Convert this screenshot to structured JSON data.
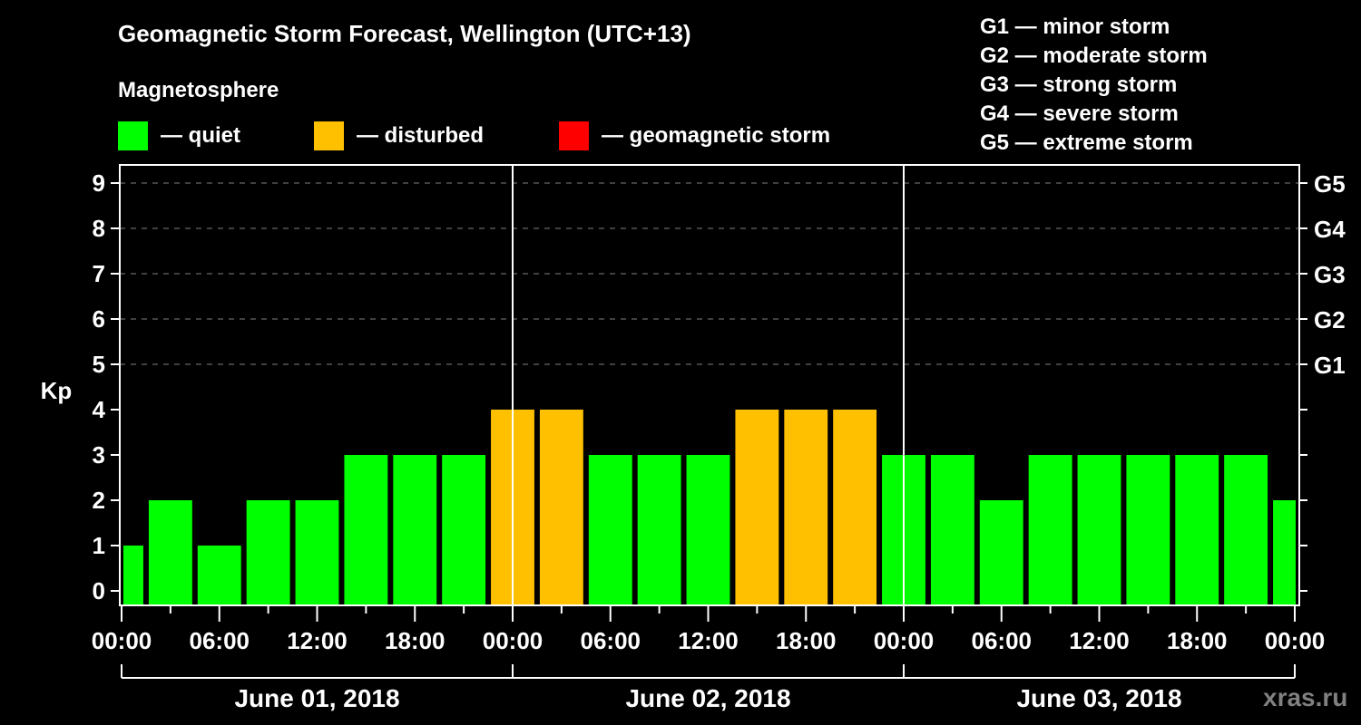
{
  "header": {
    "title": "Geomagnetic Storm Forecast, Wellington (UTC+13)",
    "subtitle": "Magnetosphere"
  },
  "legend": [
    {
      "label": "— quiet",
      "color": "#00ff00"
    },
    {
      "label": "— disturbed",
      "color": "#ffc000"
    },
    {
      "label": "— geomagnetic storm",
      "color": "#ff0000"
    }
  ],
  "storm_scale": [
    "G1 — minor storm",
    "G2 — moderate storm",
    "G3 — strong storm",
    "G4 — severe storm",
    "G5 — extreme storm"
  ],
  "watermark": "xras.ru",
  "chart_data": {
    "type": "bar",
    "title": "Geomagnetic Storm Forecast, Wellington (UTC+13)",
    "ylabel": "Kp",
    "xlabel": "",
    "ylim": [
      0,
      9
    ],
    "y_ticks": [
      0,
      1,
      2,
      3,
      4,
      5,
      6,
      7,
      8,
      9
    ],
    "right_axis_ticks": [
      {
        "kp": 5,
        "label": "G1"
      },
      {
        "kp": 6,
        "label": "G2"
      },
      {
        "kp": 7,
        "label": "G3"
      },
      {
        "kp": 8,
        "label": "G4"
      },
      {
        "kp": 9,
        "label": "G5"
      }
    ],
    "grid": "dashed horizontal at Kp 5-9",
    "interval_hours": 3,
    "x_tick_labels": [
      "00:00",
      "06:00",
      "12:00",
      "18:00",
      "00:00",
      "06:00",
      "12:00",
      "18:00",
      "00:00",
      "06:00",
      "12:00",
      "18:00",
      "00:00"
    ],
    "days": [
      "June 01, 2018",
      "June 02, 2018",
      "June 03, 2018"
    ],
    "categories": [
      "Jun01 00:00",
      "Jun01 03:00",
      "Jun01 06:00",
      "Jun01 09:00",
      "Jun01 12:00",
      "Jun01 15:00",
      "Jun01 18:00",
      "Jun01 21:00",
      "Jun02 00:00",
      "Jun02 03:00",
      "Jun02 06:00",
      "Jun02 09:00",
      "Jun02 12:00",
      "Jun02 15:00",
      "Jun02 18:00",
      "Jun02 21:00",
      "Jun03 00:00",
      "Jun03 03:00",
      "Jun03 06:00",
      "Jun03 09:00",
      "Jun03 12:00",
      "Jun03 15:00",
      "Jun03 18:00",
      "Jun03 21:00",
      "Jun04 00:00"
    ],
    "values": [
      1,
      2,
      1,
      2,
      2,
      3,
      3,
      3,
      4,
      4,
      3,
      3,
      3,
      4,
      4,
      4,
      3,
      3,
      2,
      3,
      3,
      3,
      3,
      3,
      2
    ],
    "status": [
      "quiet",
      "quiet",
      "quiet",
      "quiet",
      "quiet",
      "quiet",
      "quiet",
      "quiet",
      "disturbed",
      "disturbed",
      "quiet",
      "quiet",
      "quiet",
      "disturbed",
      "disturbed",
      "disturbed",
      "quiet",
      "quiet",
      "quiet",
      "quiet",
      "quiet",
      "quiet",
      "quiet",
      "quiet",
      "quiet"
    ],
    "colors": {
      "quiet": "#00ff00",
      "disturbed": "#ffc000",
      "storm": "#ff0000"
    }
  }
}
